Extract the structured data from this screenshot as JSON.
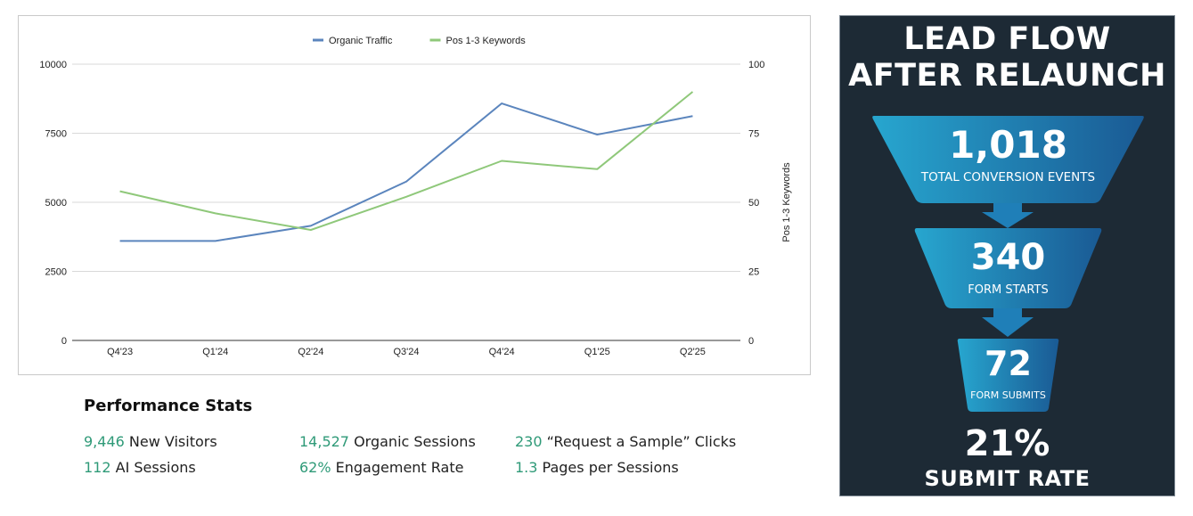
{
  "chart_data": {
    "type": "line",
    "categories": [
      "Q4'23",
      "Q1'24",
      "Q2'24",
      "Q3'24",
      "Q4'24",
      "Q1'25",
      "Q2'25"
    ],
    "series": [
      {
        "name": "Organic Traffic",
        "axis": "left",
        "color": "#5b85bd",
        "values": [
          3600,
          3600,
          4150,
          5750,
          8580,
          7450,
          8120
        ]
      },
      {
        "name": "Pos 1-3 Keywords",
        "axis": "right",
        "color": "#8fc87a",
        "values": [
          54,
          46,
          40,
          52,
          65,
          62,
          90
        ]
      }
    ],
    "y_left": {
      "min": 0,
      "max": 10000,
      "ticks": [
        "0",
        "2500",
        "5000",
        "7500",
        "10000"
      ]
    },
    "y_right": {
      "min": 0,
      "max": 100,
      "ticks": [
        "0",
        "25",
        "50",
        "75",
        "100"
      ],
      "label": "Pos 1-3 Keywords"
    },
    "grid": true,
    "legend_position": "top"
  },
  "stats": {
    "title": "Performance Stats",
    "items": [
      {
        "num": "9,446",
        "label": " New Visitors"
      },
      {
        "num": "14,527",
        "label": " Organic Sessions"
      },
      {
        "num": "230",
        "label": " “Request a Sample” Clicks"
      },
      {
        "num": "112",
        "label": " AI Sessions"
      },
      {
        "num": "62%",
        "label": " Engagement Rate"
      },
      {
        "num": "1.3",
        "label": " Pages per Sessions"
      }
    ]
  },
  "funnel": {
    "title_line1": "LEAD FLOW",
    "title_line2": "AFTER RELAUNCH",
    "stages": [
      {
        "value": "1,018",
        "label": "TOTAL CONVERSION EVENTS"
      },
      {
        "value": "340",
        "label": "FORM STARTS"
      },
      {
        "value": "72",
        "label": "FORM SUBMITS"
      }
    ],
    "rate_value": "21%",
    "rate_label": "SUBMIT RATE",
    "colors": {
      "funnel_light": "#27a6cf",
      "funnel_dark": "#1a5a94",
      "background": "#1d2a35"
    }
  }
}
